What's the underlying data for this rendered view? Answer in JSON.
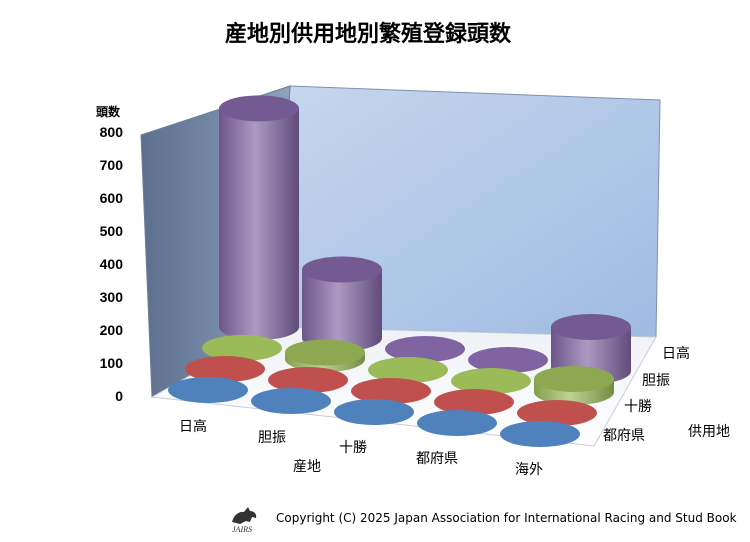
{
  "chart_data": {
    "type": "bar",
    "title": "産地別供用地別繁殖登録頭数",
    "ylabel": "頭数",
    "xlabel": "産地",
    "zlabel": "供用地",
    "ylim": [
      0,
      800
    ],
    "yticks": [
      "0",
      "100",
      "200",
      "300",
      "400",
      "500",
      "600",
      "700",
      "800"
    ],
    "categories": [
      "日高",
      "胆振",
      "十勝",
      "都府県",
      "海外"
    ],
    "series": [
      {
        "name": "日高",
        "color": "#8064a2",
        "values": [
          670,
          210,
          0,
          0,
          135
        ]
      },
      {
        "name": "胆振",
        "color": "#9bbb59",
        "values": [
          0,
          20,
          0,
          0,
          40
        ]
      },
      {
        "name": "十勝",
        "color": "#c0504d",
        "values": [
          0,
          0,
          0,
          0,
          0
        ]
      },
      {
        "name": "都府県",
        "color": "#4f81bd",
        "values": [
          0,
          0,
          0,
          0,
          0
        ]
      }
    ],
    "grid": false,
    "legend": "none"
  },
  "footer": {
    "copyright": "Copyright (C) 2025 Japan Association for International Racing and Stud Book",
    "logo_icon": "horse-logo-icon"
  }
}
